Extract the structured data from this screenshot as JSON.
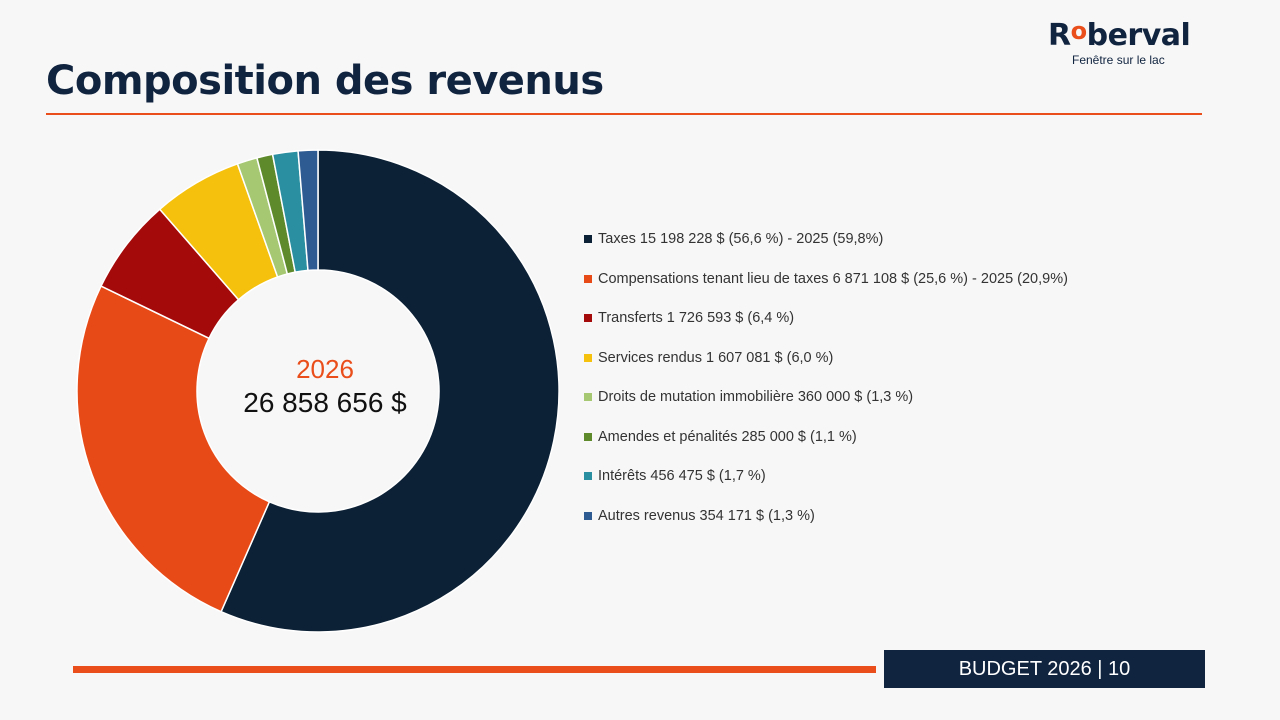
{
  "header": {
    "logo_text": "Roberval",
    "logo_tagline": "Fenêtre sur le lac",
    "title": "Composition des revenus"
  },
  "footer": {
    "label": "BUDGET 2026 | 10"
  },
  "colors": {
    "navy": "#10233f",
    "accent_orange": "#e94e1b"
  },
  "chart_data": {
    "type": "pie",
    "donut": true,
    "center_label": {
      "year": "2026",
      "total": "26 858 656 $"
    },
    "legend_placement": "right",
    "slices": [
      {
        "label": "Taxes  15 198 228 $ (56,6 %) - 2025 (59,8%)",
        "name": "Taxes",
        "value": 15198228,
        "percent": 56.6,
        "color": "#0c2136"
      },
      {
        "label": "Compensations tenant lieu de taxes  6 871 108 $ (25,6 %) - 2025 (20,9%)",
        "name": "Compensations tenant lieu de taxes",
        "value": 6871108,
        "percent": 25.6,
        "color": "#e84a17"
      },
      {
        "label": "Transferts  1 726 593 $ (6,4 %)",
        "name": "Transferts",
        "value": 1726593,
        "percent": 6.4,
        "color": "#a50a0a"
      },
      {
        "label": "Services rendus  1 607 081 $ (6,0 %)",
        "name": "Services rendus",
        "value": 1607081,
        "percent": 6.0,
        "color": "#f5c10d"
      },
      {
        "label": "Droits de mutation immobilière  360 000 $ (1,3 %)",
        "name": "Droits de mutation immobilière",
        "value": 360000,
        "percent": 1.3,
        "color": "#a6c873"
      },
      {
        "label": "Amendes et pénalités  285 000 $ (1,1 %)",
        "name": "Amendes et pénalités",
        "value": 285000,
        "percent": 1.1,
        "color": "#5f8a2c"
      },
      {
        "label": "Intérêts  456 475    $ (1,7 %)",
        "name": "Intérêts",
        "value": 456475,
        "percent": 1.7,
        "color": "#2a8fa0"
      },
      {
        "label": "Autres revenus  354 171 $ (1,3 %)",
        "name": "Autres revenus",
        "value": 354171,
        "percent": 1.3,
        "color": "#2e5b92"
      }
    ]
  }
}
